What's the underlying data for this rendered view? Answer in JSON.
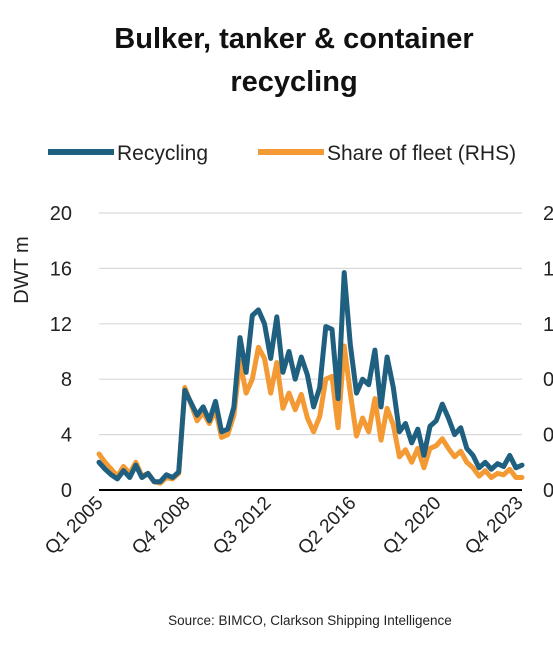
{
  "chart_data": {
    "type": "line",
    "title": "Bulker, tanker & container recycling",
    "title_lines": [
      "Bulker, tanker & container",
      "recycling"
    ],
    "ylabel": "DWT m",
    "ylim": [
      0,
      20
    ],
    "yticks": [
      "0",
      "4",
      "8",
      "12",
      "16",
      "20"
    ],
    "y2ticks_visible": [
      "0",
      "0",
      "0",
      "1",
      "1",
      "2"
    ],
    "xtick_labels": [
      "Q1 2005",
      "Q4 2008",
      "Q3 2012",
      "Q2 2016",
      "Q1 2020",
      "Q4 2023"
    ],
    "grid": "horizontal",
    "legend_placement": "top",
    "source": "Source: BIMCO, Clarkson Shipping Intelligence",
    "colors": {
      "recycling": "#1f5f7f",
      "share": "#f39a35"
    },
    "series": [
      {
        "name": "Recycling",
        "axis": "left",
        "values": [
          2.0,
          1.5,
          1.1,
          0.8,
          1.4,
          0.9,
          1.8,
          0.9,
          1.2,
          0.6,
          0.6,
          1.1,
          0.9,
          1.3,
          7.2,
          6.3,
          5.4,
          6.0,
          5.0,
          6.4,
          4.2,
          4.4,
          6.0,
          11.0,
          8.5,
          12.6,
          13.0,
          12.0,
          9.5,
          12.5,
          8.5,
          10.0,
          8.0,
          9.6,
          8.3,
          6.0,
          7.4,
          11.8,
          11.6,
          6.6,
          15.7,
          10.5,
          7.0,
          8.0,
          7.6,
          10.1,
          6.0,
          9.6,
          7.4,
          4.2,
          4.8,
          3.4,
          4.4,
          2.5,
          4.6,
          5.0,
          6.2,
          5.2,
          4.0,
          4.5,
          3.0,
          2.5,
          1.6,
          2.0,
          1.5,
          1.9,
          1.7,
          2.5,
          1.6,
          1.8
        ]
      },
      {
        "name": "Share of fleet (RHS)",
        "axis": "right",
        "values": [
          2.6,
          2.0,
          1.5,
          1.0,
          1.7,
          1.2,
          2.0,
          1.0,
          1.2,
          0.6,
          0.5,
          0.9,
          0.8,
          1.2,
          7.4,
          6.2,
          5.0,
          5.6,
          4.8,
          5.8,
          3.8,
          4.0,
          5.4,
          9.3,
          7.0,
          8.0,
          10.3,
          9.5,
          7.0,
          9.2,
          5.9,
          7.0,
          5.8,
          6.9,
          5.2,
          4.2,
          5.3,
          8.0,
          8.2,
          4.5,
          10.4,
          7.0,
          3.9,
          5.2,
          4.2,
          6.6,
          3.6,
          5.9,
          4.7,
          2.4,
          2.9,
          2.0,
          3.0,
          1.6,
          3.0,
          3.2,
          3.7,
          3.0,
          2.4,
          2.8,
          2.0,
          1.6,
          1.0,
          1.4,
          0.9,
          1.2,
          1.1,
          1.5,
          0.9,
          0.9
        ]
      }
    ]
  }
}
